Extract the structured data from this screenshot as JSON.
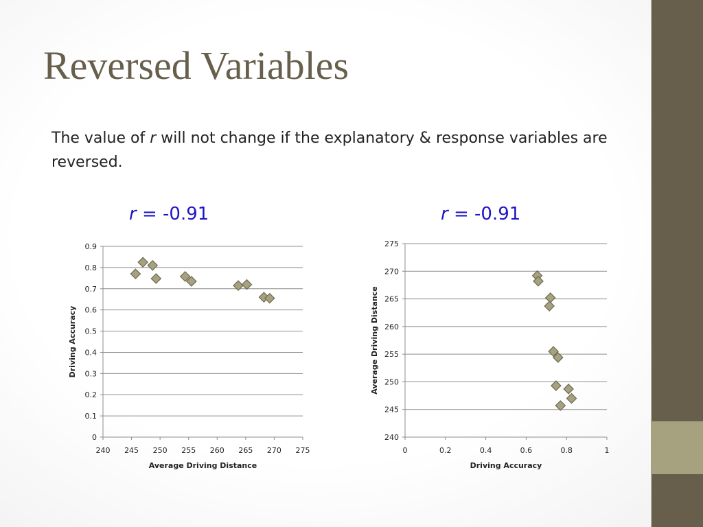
{
  "slide": {
    "title": "Reversed Variables",
    "body_prefix": "The value of ",
    "body_r": "r",
    "body_suffix": " will not change if the explanatory & response variables are reversed.",
    "colors": {
      "title": "#675f4b",
      "r_label": "#1d15c9",
      "sidebar": "#675f4b",
      "sidebar_accent": "#a6a17e",
      "marker_fill": "#a6a17e",
      "marker_stroke": "#6e6a52"
    }
  },
  "left": {
    "r_symbol": "r",
    "r_value": " = -0.91"
  },
  "right": {
    "r_symbol": "r",
    "r_value": " = -0.91"
  },
  "chart_data": [
    {
      "type": "scatter",
      "title": "",
      "xlabel": "Average Driving Distance",
      "ylabel": "Driving Accuracy",
      "xlim": [
        240,
        275
      ],
      "ylim": [
        0,
        0.9
      ],
      "xticks": [
        "240",
        "245",
        "250",
        "255",
        "260",
        "265",
        "270",
        "275"
      ],
      "yticks": [
        "0",
        "0.1",
        "0.2",
        "0.3",
        "0.4",
        "0.5",
        "0.6",
        "0.7",
        "0.8",
        "0.9"
      ],
      "grid": "horizontal",
      "marker": "diamond",
      "points": [
        [
          245.7,
          0.77
        ],
        [
          247.0,
          0.825
        ],
        [
          248.7,
          0.81
        ],
        [
          249.3,
          0.748
        ],
        [
          254.4,
          0.758
        ],
        [
          255.5,
          0.735
        ],
        [
          263.7,
          0.715
        ],
        [
          265.2,
          0.72
        ],
        [
          268.2,
          0.66
        ],
        [
          269.2,
          0.655
        ]
      ]
    },
    {
      "type": "scatter",
      "title": "",
      "xlabel": "Driving Accuracy",
      "ylabel": "Average Driving Distance",
      "xlim": [
        0,
        1
      ],
      "ylim": [
        240,
        275
      ],
      "xticks": [
        "0",
        "0.2",
        "0.4",
        "0.6",
        "0.8",
        "1"
      ],
      "yticks": [
        "240",
        "245",
        "250",
        "255",
        "260",
        "265",
        "270",
        "275"
      ],
      "grid": "horizontal",
      "marker": "diamond",
      "points": [
        [
          0.655,
          269.2
        ],
        [
          0.66,
          268.2
        ],
        [
          0.72,
          265.2
        ],
        [
          0.715,
          263.7
        ],
        [
          0.735,
          255.5
        ],
        [
          0.758,
          254.4
        ],
        [
          0.748,
          249.3
        ],
        [
          0.81,
          248.7
        ],
        [
          0.825,
          247.0
        ],
        [
          0.77,
          245.7
        ]
      ]
    }
  ]
}
